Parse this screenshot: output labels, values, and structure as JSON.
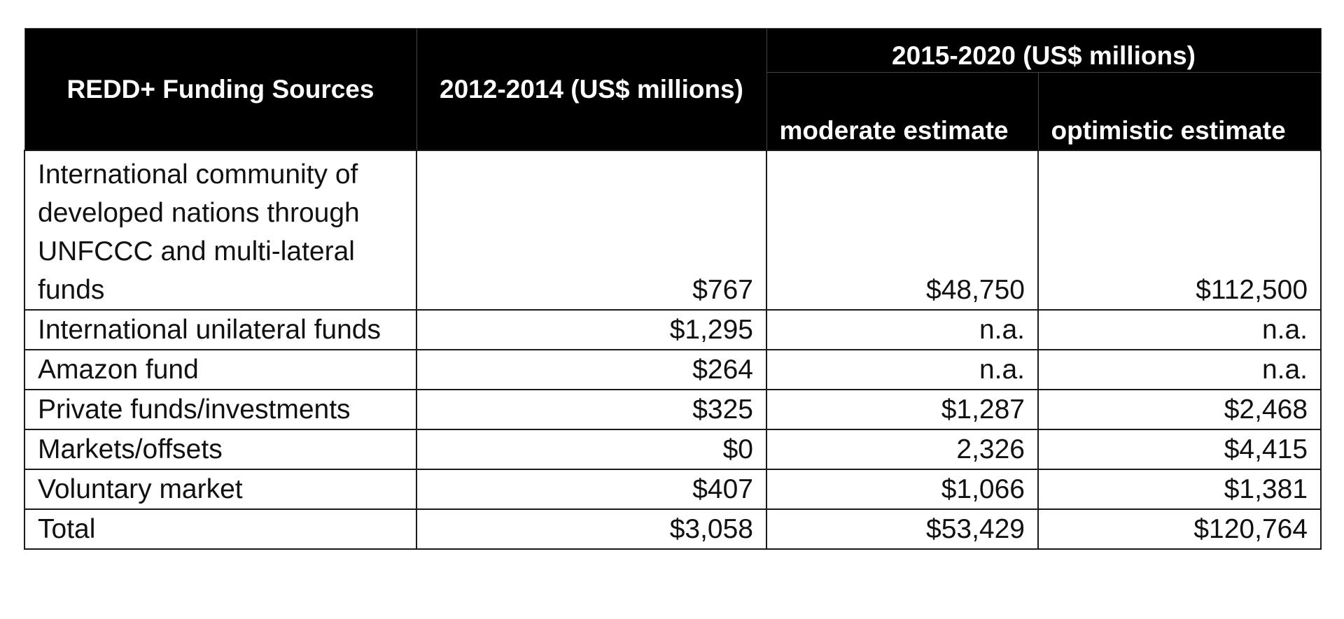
{
  "table": {
    "headers": {
      "source": "REDD+ Funding Sources",
      "period_2012": "2012-2014 (US$ millions)",
      "period_2015": "2015-2020 (US$ millions)",
      "moderate": "moderate estimate",
      "optimistic": "optimistic estimate"
    },
    "rows": [
      {
        "source": "International community of developed nations through UNFCCC and multi-lateral funds",
        "v2012": "$767",
        "moderate": "$48,750",
        "optimistic": "$112,500"
      },
      {
        "source": "International unilateral funds",
        "v2012": "$1,295",
        "moderate": "n.a.",
        "optimistic": "n.a."
      },
      {
        "source": "Amazon fund",
        "v2012": "$264",
        "moderate": "n.a.",
        "optimistic": "n.a."
      },
      {
        "source": "Private funds/investments",
        "v2012": "$325",
        "moderate": "$1,287",
        "optimistic": "$2,468"
      },
      {
        "source": "Markets/offsets",
        "v2012": "$0",
        "moderate": "2,326",
        "optimistic": "$4,415"
      },
      {
        "source": "Voluntary market",
        "v2012": "$407",
        "moderate": "$1,066",
        "optimistic": "$1,381"
      },
      {
        "source": "Total",
        "v2012": "$3,058",
        "moderate": "$53,429",
        "optimistic": "$120,764"
      }
    ]
  }
}
